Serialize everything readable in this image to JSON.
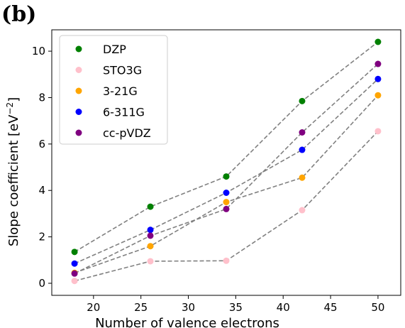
{
  "panel_label": "(b)",
  "chart_data": {
    "type": "scatter",
    "xlabel": "Number of valence electrons",
    "ylabel": "Slope coefficient [eV",
    "ylabel_sup": "−2",
    "ylabel_close": "]",
    "x": [
      18,
      26,
      34,
      42,
      50
    ],
    "xlim": [
      15.6,
      52.4
    ],
    "ylim": [
      -0.52,
      10.92
    ],
    "xticks": [
      20,
      25,
      30,
      35,
      40,
      45,
      50
    ],
    "yticks": [
      0,
      2,
      4,
      6,
      8,
      10
    ],
    "grid": false,
    "legend_position": "upper-left",
    "line_style": "dashed",
    "line_color": "#808080",
    "series": [
      {
        "name": "DZP",
        "color": "#008000",
        "values": [
          1.35,
          3.3,
          4.6,
          7.85,
          10.4
        ]
      },
      {
        "name": "STO3G",
        "color": "#ffc0cb",
        "values": [
          0.1,
          0.95,
          0.97,
          3.15,
          6.55
        ]
      },
      {
        "name": "3-21G",
        "color": "#ffa500",
        "values": [
          0.45,
          1.6,
          3.5,
          4.55,
          8.1
        ]
      },
      {
        "name": "6-311G",
        "color": "#0000ff",
        "values": [
          0.85,
          2.3,
          3.9,
          5.75,
          8.8
        ]
      },
      {
        "name": "cc-pVDZ",
        "color": "#800080",
        "values": [
          0.42,
          2.05,
          3.2,
          6.5,
          9.45
        ]
      }
    ]
  }
}
